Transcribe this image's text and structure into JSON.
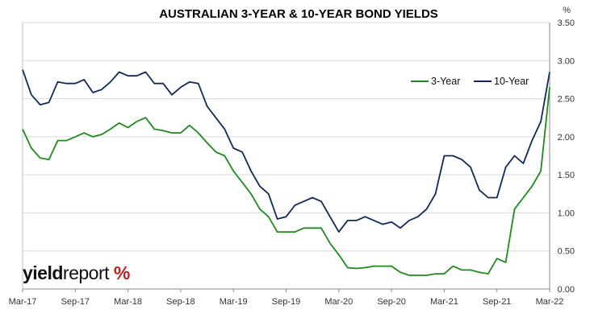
{
  "chart_data": {
    "type": "line",
    "title": "AUSTRALIAN 3-YEAR & 10-YEAR BOND YIELDS",
    "ylabel": "%",
    "ylim": [
      0,
      3.5
    ],
    "y_ticks": [
      "0.00",
      "0.50",
      "1.00",
      "1.50",
      "2.00",
      "2.50",
      "3.00",
      "3.50"
    ],
    "x_ticks": [
      "Mar-17",
      "Sep-17",
      "Mar-18",
      "Sep-18",
      "Mar-19",
      "Sep-19",
      "Mar-20",
      "Sep-20",
      "Mar-21",
      "Sep-21",
      "Mar-22"
    ],
    "legend_position": "top-right",
    "grid": "horizontal",
    "x": [
      "Mar-17",
      "Apr-17",
      "May-17",
      "Jun-17",
      "Jul-17",
      "Aug-17",
      "Sep-17",
      "Oct-17",
      "Nov-17",
      "Dec-17",
      "Jan-18",
      "Feb-18",
      "Mar-18",
      "Apr-18",
      "May-18",
      "Jun-18",
      "Jul-18",
      "Aug-18",
      "Sep-18",
      "Oct-18",
      "Nov-18",
      "Dec-18",
      "Jan-19",
      "Feb-19",
      "Mar-19",
      "Apr-19",
      "May-19",
      "Jun-19",
      "Jul-19",
      "Aug-19",
      "Sep-19",
      "Oct-19",
      "Nov-19",
      "Dec-19",
      "Jan-20",
      "Feb-20",
      "Mar-20",
      "Apr-20",
      "May-20",
      "Jun-20",
      "Jul-20",
      "Aug-20",
      "Sep-20",
      "Oct-20",
      "Nov-20",
      "Dec-20",
      "Jan-21",
      "Feb-21",
      "Mar-21",
      "Apr-21",
      "May-21",
      "Jun-21",
      "Jul-21",
      "Aug-21",
      "Sep-21",
      "Oct-21",
      "Nov-21",
      "Dec-21",
      "Jan-22",
      "Feb-22",
      "Mar-22"
    ],
    "series": [
      {
        "name": "3-Year",
        "color": "#1e8a1e",
        "values": [
          2.1,
          1.85,
          1.72,
          1.7,
          1.95,
          1.95,
          2.0,
          2.05,
          2.0,
          2.03,
          2.1,
          2.18,
          2.12,
          2.2,
          2.25,
          2.1,
          2.08,
          2.05,
          2.05,
          2.15,
          2.05,
          1.92,
          1.8,
          1.75,
          1.55,
          1.4,
          1.25,
          1.05,
          0.95,
          0.75,
          0.75,
          0.75,
          0.8,
          0.8,
          0.8,
          0.6,
          0.45,
          0.28,
          0.27,
          0.28,
          0.3,
          0.3,
          0.3,
          0.22,
          0.18,
          0.18,
          0.18,
          0.2,
          0.2,
          0.3,
          0.25,
          0.25,
          0.22,
          0.2,
          0.4,
          0.35,
          1.05,
          1.2,
          1.35,
          1.55,
          2.65
        ]
      },
      {
        "name": "10-Year",
        "color": "#13285a",
        "values": [
          2.88,
          2.55,
          2.42,
          2.45,
          2.72,
          2.7,
          2.7,
          2.75,
          2.58,
          2.62,
          2.72,
          2.85,
          2.8,
          2.8,
          2.85,
          2.7,
          2.7,
          2.55,
          2.65,
          2.72,
          2.7,
          2.4,
          2.25,
          2.1,
          1.85,
          1.8,
          1.55,
          1.35,
          1.25,
          0.92,
          0.95,
          1.1,
          1.15,
          1.2,
          1.15,
          0.95,
          0.75,
          0.9,
          0.9,
          0.95,
          0.9,
          0.85,
          0.88,
          0.8,
          0.9,
          0.95,
          1.05,
          1.25,
          1.75,
          1.75,
          1.7,
          1.6,
          1.3,
          1.2,
          1.2,
          1.6,
          1.75,
          1.65,
          1.95,
          2.2,
          2.85
        ]
      }
    ]
  },
  "logo": {
    "text_bold": "yield",
    "text_light": "report",
    "symbol": "%"
  }
}
